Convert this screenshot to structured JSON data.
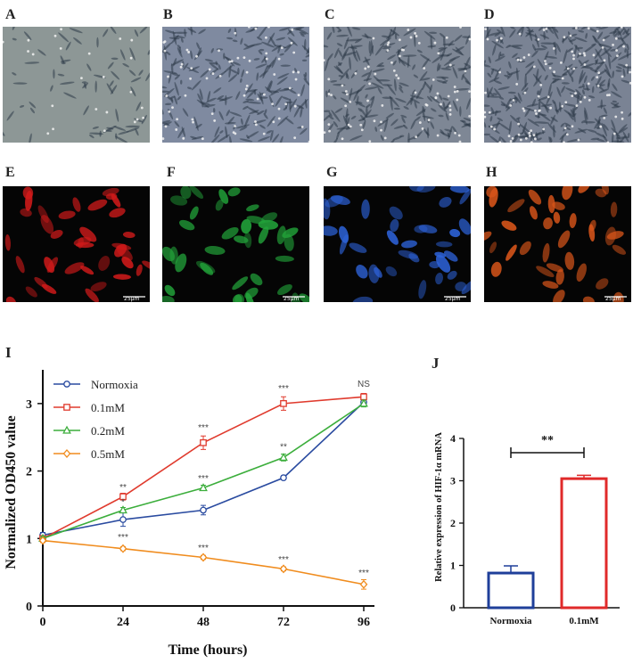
{
  "panels": {
    "top_row": [
      {
        "letter": "A",
        "tone": "#8d9796"
      },
      {
        "letter": "B",
        "tone": "#7f8aa0"
      },
      {
        "letter": "C",
        "tone": "#7e8795"
      },
      {
        "letter": "D",
        "tone": "#7a8394"
      }
    ],
    "fluor_row": [
      {
        "letter": "E",
        "color": "#d01a1a",
        "scale": "25μm"
      },
      {
        "letter": "F",
        "color": "#22a33a",
        "scale": "25μm"
      },
      {
        "letter": "G",
        "color": "#2d62d8",
        "scale": "25μm"
      },
      {
        "letter": "H",
        "color": "#d8551a",
        "scale": "25μm"
      }
    ],
    "chart_i_letter": "I",
    "chart_j_letter": "J"
  },
  "chart_data": [
    {
      "type": "line",
      "xlabel": "Time (hours)",
      "ylabel": "Normalized OD450 value",
      "x": [
        0,
        24,
        48,
        72,
        96
      ],
      "xlim": [
        0,
        96
      ],
      "ylim": [
        0,
        3.5
      ],
      "yticks": [
        0,
        1,
        2,
        3
      ],
      "legend_position": "top-left",
      "series": [
        {
          "name": "Normoxia",
          "color": "#2a4ba0",
          "marker": "circle",
          "values": [
            1.05,
            1.28,
            1.42,
            1.9,
            3.02
          ],
          "errors": [
            0.04,
            0.1,
            0.07,
            0.03,
            0.05
          ]
        },
        {
          "name": "0.1mM",
          "color": "#e03b2e",
          "marker": "square",
          "values": [
            1.0,
            1.62,
            2.42,
            3.0,
            3.1
          ],
          "errors": [
            0.04,
            0.05,
            0.1,
            0.1,
            0.05
          ]
        },
        {
          "name": "0.2mM",
          "color": "#3cae3c",
          "marker": "triangle",
          "values": [
            1.0,
            1.42,
            1.75,
            2.2,
            3.0
          ],
          "errors": [
            0.03,
            0.04,
            0.04,
            0.05,
            0.05
          ]
        },
        {
          "name": "0.5mM",
          "color": "#f08c1e",
          "marker": "diamond",
          "values": [
            0.97,
            0.85,
            0.72,
            0.55,
            0.32
          ],
          "errors": [
            0.03,
            0.03,
            0.03,
            0.03,
            0.07
          ]
        }
      ],
      "annotations": [
        {
          "x": 24,
          "y": 1.72,
          "text": "**"
        },
        {
          "x": 24,
          "y": 1.5,
          "text": "*"
        },
        {
          "x": 24,
          "y": 0.98,
          "text": "***"
        },
        {
          "x": 48,
          "y": 2.6,
          "text": "***"
        },
        {
          "x": 48,
          "y": 1.85,
          "text": "***"
        },
        {
          "x": 48,
          "y": 0.82,
          "text": "***"
        },
        {
          "x": 72,
          "y": 3.18,
          "text": "***"
        },
        {
          "x": 72,
          "y": 2.32,
          "text": "**"
        },
        {
          "x": 72,
          "y": 0.65,
          "text": "***"
        },
        {
          "x": 96,
          "y": 3.25,
          "text": "NS"
        },
        {
          "x": 96,
          "y": 0.45,
          "text": "***"
        }
      ]
    },
    {
      "type": "bar",
      "ylabel": "Relative expression of HIF-1α mRNA",
      "categories": [
        "Normoxia",
        "0.1mM"
      ],
      "values": [
        0.82,
        3.05
      ],
      "errors": [
        0.17,
        0.08
      ],
      "colors": [
        "#1f3f9a",
        "#e02a2a"
      ],
      "ylim": [
        0,
        4
      ],
      "yticks": [
        0,
        1,
        2,
        3,
        4
      ],
      "significance": "**"
    }
  ]
}
